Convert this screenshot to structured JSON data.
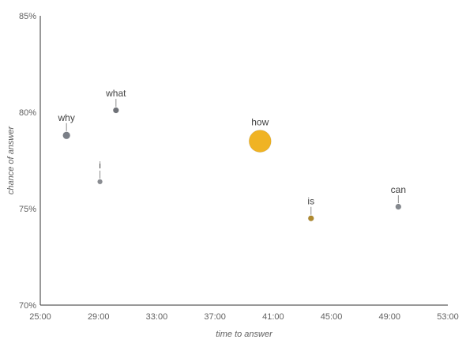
{
  "chart_data": {
    "type": "scatter",
    "title": "",
    "xlabel": "time to answer",
    "ylabel": "chance of answer",
    "xlim": [
      25,
      53
    ],
    "ylim": [
      70,
      85
    ],
    "x_ticks": [
      25,
      29,
      33,
      37,
      41,
      45,
      49,
      53
    ],
    "x_tick_labels": [
      "25:00",
      "29:00",
      "33:00",
      "37:00",
      "41:00",
      "45:00",
      "49:00",
      "53:00"
    ],
    "y_ticks": [
      70,
      75,
      80,
      85
    ],
    "y_tick_labels": [
      "70%",
      "75%",
      "80%",
      "85%"
    ],
    "grid": false,
    "legend": "none",
    "points": [
      {
        "label": "why",
        "x": 26.8,
        "y": 78.8,
        "size": 9,
        "color": "#7a7f87"
      },
      {
        "label": "what",
        "x": 30.2,
        "y": 80.1,
        "size": 7,
        "color": "#6f7278"
      },
      {
        "label": "i",
        "x": 29.1,
        "y": 76.4,
        "size": 6,
        "color": "#8a8d92"
      },
      {
        "label": "how",
        "x": 40.1,
        "y": 78.5,
        "size": 28,
        "color": "#f0b323"
      },
      {
        "label": "is",
        "x": 43.6,
        "y": 74.5,
        "size": 7,
        "color": "#b08a2e"
      },
      {
        "label": "can",
        "x": 49.6,
        "y": 75.1,
        "size": 7,
        "color": "#85898f"
      }
    ]
  }
}
